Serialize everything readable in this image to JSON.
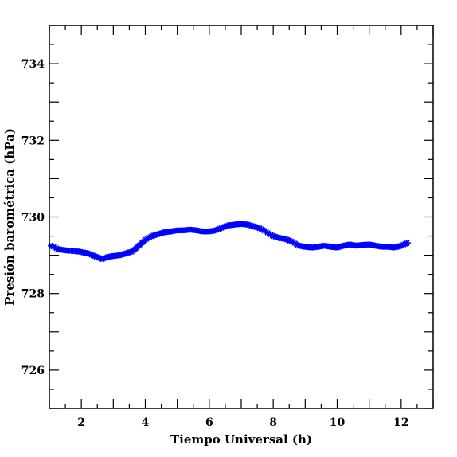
{
  "chart_data": {
    "type": "scatter",
    "title": "",
    "xlabel": "Tiempo Universal (h)",
    "ylabel": "Presión barométrica (hPa)",
    "xlim": [
      1,
      13
    ],
    "ylim": [
      725,
      735
    ],
    "x_ticks": [
      2,
      4,
      6,
      8,
      10,
      12
    ],
    "y_ticks": [
      726,
      728,
      730,
      732,
      734
    ],
    "grid": false,
    "legend": "none",
    "marker": "asterisk",
    "color": "#0000ff",
    "series": [
      {
        "x": [
          1.05,
          1.3,
          1.6,
          1.9,
          2.2,
          2.35,
          2.5,
          2.65,
          2.8,
          3.0,
          3.2,
          3.4,
          3.6,
          3.8,
          4.0,
          4.2,
          4.4,
          4.6,
          4.8,
          5.0,
          5.2,
          5.4,
          5.6,
          5.8,
          6.0,
          6.2,
          6.4,
          6.6,
          6.8,
          7.0,
          7.2,
          7.4,
          7.6,
          7.8,
          8.0,
          8.2,
          8.4,
          8.6,
          8.8,
          9.0,
          9.2,
          9.4,
          9.6,
          9.8,
          10.0,
          10.2,
          10.4,
          10.6,
          10.8,
          11.0,
          11.2,
          11.4,
          11.6,
          11.8,
          12.0,
          12.2
        ],
        "y": [
          729.25,
          729.15,
          729.12,
          729.1,
          729.05,
          729.0,
          728.95,
          728.9,
          728.95,
          728.98,
          729.0,
          729.05,
          729.1,
          729.25,
          729.4,
          729.5,
          729.55,
          729.6,
          729.62,
          729.65,
          729.65,
          729.67,
          729.65,
          729.62,
          729.62,
          729.65,
          729.72,
          729.78,
          729.8,
          729.82,
          729.8,
          729.75,
          729.7,
          729.6,
          729.5,
          729.45,
          729.42,
          729.35,
          729.25,
          729.22,
          729.2,
          729.22,
          729.25,
          729.22,
          729.2,
          729.25,
          729.28,
          729.25,
          729.27,
          729.28,
          729.25,
          729.22,
          729.22,
          729.2,
          729.25,
          729.32
        ]
      }
    ]
  }
}
